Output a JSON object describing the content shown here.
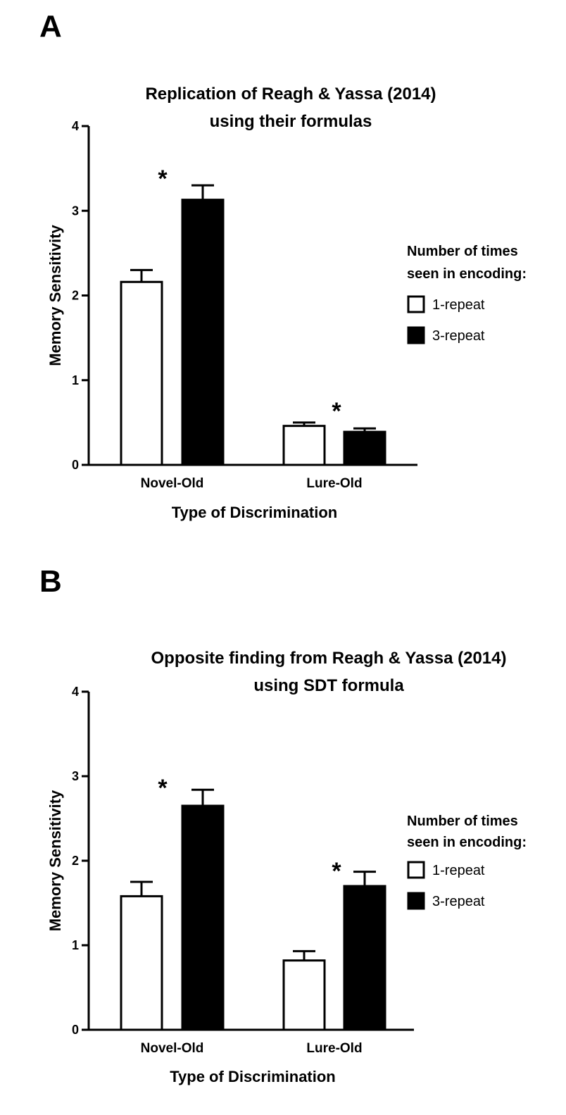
{
  "chart_data": [
    {
      "panel": "A",
      "type": "bar",
      "title": [
        "Replication of Reagh & Yassa (2014)",
        "using their formulas"
      ],
      "xlabel": "Type of Discrimination",
      "ylabel": "Memory Sensitivity",
      "ylim": [
        0,
        4
      ],
      "yticks": [
        "0",
        "1",
        "2",
        "3",
        "4"
      ],
      "categories": [
        "Novel-Old",
        "Lure-Old"
      ],
      "series": [
        {
          "name": "1-repeat",
          "color": "#ffffff",
          "values": [
            2.16,
            0.46
          ],
          "errors": [
            0.14,
            0.04
          ]
        },
        {
          "name": "3-repeat",
          "color": "#000000",
          "values": [
            3.13,
            0.39
          ],
          "errors": [
            0.17,
            0.04
          ]
        }
      ],
      "significance": [
        "*",
        "*"
      ],
      "legend": {
        "title": [
          "Number of times",
          "seen in encoding:"
        ],
        "placement": "right"
      }
    },
    {
      "panel": "B",
      "type": "bar",
      "title": [
        "Opposite finding from Reagh & Yassa (2014)",
        "using SDT formula"
      ],
      "xlabel": "Type of Discrimination",
      "ylabel": "Memory Sensitivity",
      "ylim": [
        0,
        4
      ],
      "yticks": [
        "0",
        "1",
        "2",
        "3",
        "4"
      ],
      "categories": [
        "Novel-Old",
        "Lure-Old"
      ],
      "series": [
        {
          "name": "1-repeat",
          "color": "#ffffff",
          "values": [
            1.58,
            0.82
          ],
          "errors": [
            0.17,
            0.11
          ]
        },
        {
          "name": "3-repeat",
          "color": "#000000",
          "values": [
            2.65,
            1.7
          ],
          "errors": [
            0.19,
            0.17
          ]
        }
      ],
      "significance": [
        "*",
        "*"
      ],
      "legend": {
        "title": [
          "Number of times",
          "seen in encoding:"
        ],
        "placement": "right"
      }
    }
  ]
}
